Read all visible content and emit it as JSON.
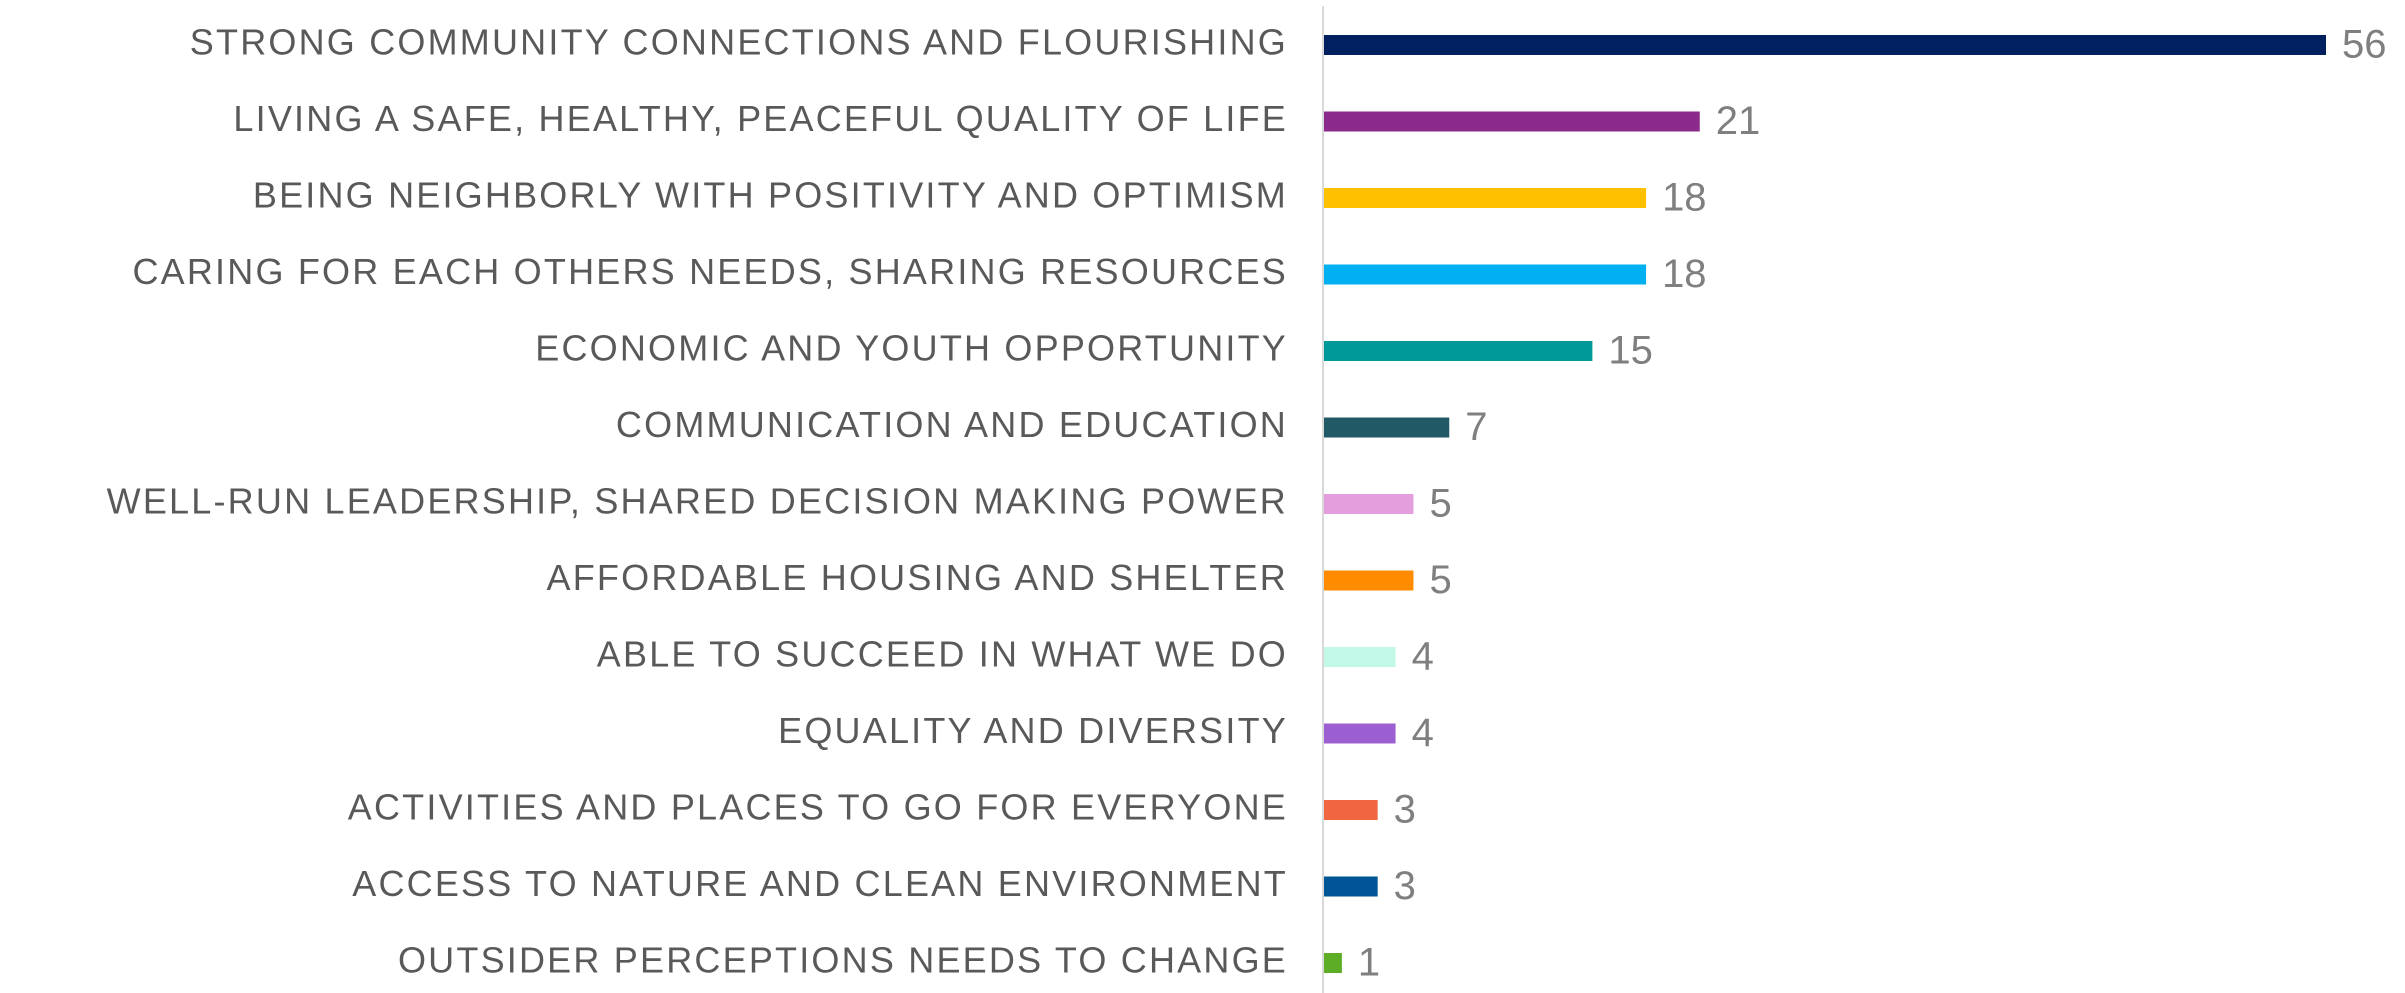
{
  "chart_data": {
    "type": "bar",
    "orientation": "horizontal",
    "categories": [
      "STRONG COMMUNITY CONNECTIONS AND FLOURISHING",
      "LIVING A SAFE, HEALTHY, PEACEFUL QUALITY OF LIFE",
      "BEING NEIGHBORLY WITH POSITIVITY AND OPTIMISM",
      "CARING FOR EACH OTHERS NEEDS, SHARING RESOURCES",
      "ECONOMIC AND YOUTH OPPORTUNITY",
      "COMMUNICATION AND EDUCATION",
      "WELL-RUN LEADERSHIP, SHARED DECISION MAKING POWER",
      "AFFORDABLE HOUSING AND SHELTER",
      "ABLE TO SUCCEED IN WHAT WE DO",
      "EQUALITY AND DIVERSITY",
      "ACTIVITIES AND PLACES TO GO FOR EVERYONE",
      "ACCESS TO NATURE AND CLEAN ENVIRONMENT",
      "OUTSIDER PERCEPTIONS NEEDS TO CHANGE"
    ],
    "values": [
      56,
      21,
      18,
      18,
      15,
      7,
      5,
      5,
      4,
      4,
      3,
      3,
      1
    ],
    "colors": [
      "#002060",
      "#8b2a8b",
      "#ffc000",
      "#00b0f0",
      "#009999",
      "#215967",
      "#e59edd",
      "#ff8c00",
      "#c2f8e8",
      "#9c5fd1",
      "#f06640",
      "#005596",
      "#5dae26"
    ]
  }
}
